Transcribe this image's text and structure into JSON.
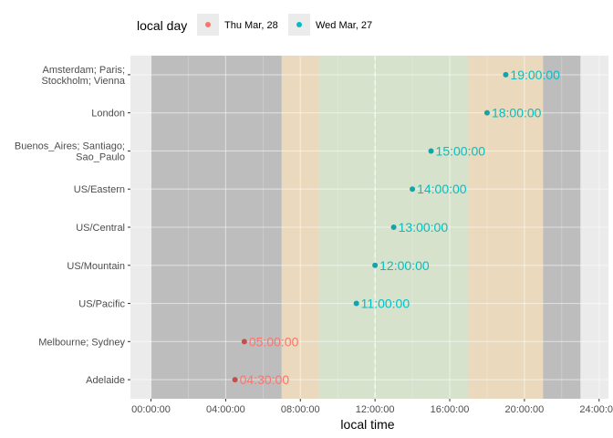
{
  "chart_data": {
    "type": "scatter",
    "title": "",
    "xlabel": "local time",
    "ylabel": "",
    "xlim": [
      "-01:06:00",
      "24:30:00"
    ],
    "x_ticks": [
      "00:00:00",
      "04:00:00",
      "08:00:00",
      "12:00:00",
      "16:00:00",
      "20:00:00",
      "24:00:00"
    ],
    "grid": true,
    "legend": {
      "title": "local day",
      "position": "top-left",
      "entries": [
        {
          "label": "Thu Mar, 28",
          "color": "#F8766D"
        },
        {
          "label": "Wed Mar, 27",
          "color": "#00BFC4"
        }
      ]
    },
    "background_bands": [
      {
        "from": "00:00:00",
        "to": "07:00:00",
        "color": "#bdbdbd"
      },
      {
        "from": "07:00:00",
        "to": "09:00:00",
        "color": "#ead9bd"
      },
      {
        "from": "09:00:00",
        "to": "17:00:00",
        "color": "#d6e2cb"
      },
      {
        "from": "17:00:00",
        "to": "21:00:00",
        "color": "#ead9bd"
      },
      {
        "from": "21:00:00",
        "to": "23:00:00",
        "color": "#bdbdbd"
      }
    ],
    "reference_line": {
      "x": "12:00:00",
      "style": "dashed"
    },
    "categories": [
      [
        "Amsterdam; Paris;",
        "Stockholm; Vienna"
      ],
      [
        "London"
      ],
      [
        "Buenos_Aires; Santiago;",
        "Sao_Paulo"
      ],
      [
        "US/Eastern"
      ],
      [
        "US/Central"
      ],
      [
        "US/Mountain"
      ],
      [
        "US/Pacific"
      ],
      [
        "Melbourne; Sydney"
      ],
      [
        "Adelaide"
      ]
    ],
    "points": [
      {
        "x": "19:00:00",
        "label": "19:00:00",
        "day": "Wed Mar, 27"
      },
      {
        "x": "18:00:00",
        "label": "18:00:00",
        "day": "Wed Mar, 27"
      },
      {
        "x": "15:00:00",
        "label": "15:00:00",
        "day": "Wed Mar, 27"
      },
      {
        "x": "14:00:00",
        "label": "14:00:00",
        "day": "Wed Mar, 27"
      },
      {
        "x": "13:00:00",
        "label": "13:00:00",
        "day": "Wed Mar, 27"
      },
      {
        "x": "12:00:00",
        "label": "12:00:00",
        "day": "Wed Mar, 27"
      },
      {
        "x": "11:00:00",
        "label": "11:00:00",
        "day": "Wed Mar, 27"
      },
      {
        "x": "05:00:00",
        "label": "05:00:00",
        "day": "Thu Mar, 28"
      },
      {
        "x": "04:30:00",
        "label": "04:30:00",
        "day": "Thu Mar, 28"
      }
    ]
  }
}
